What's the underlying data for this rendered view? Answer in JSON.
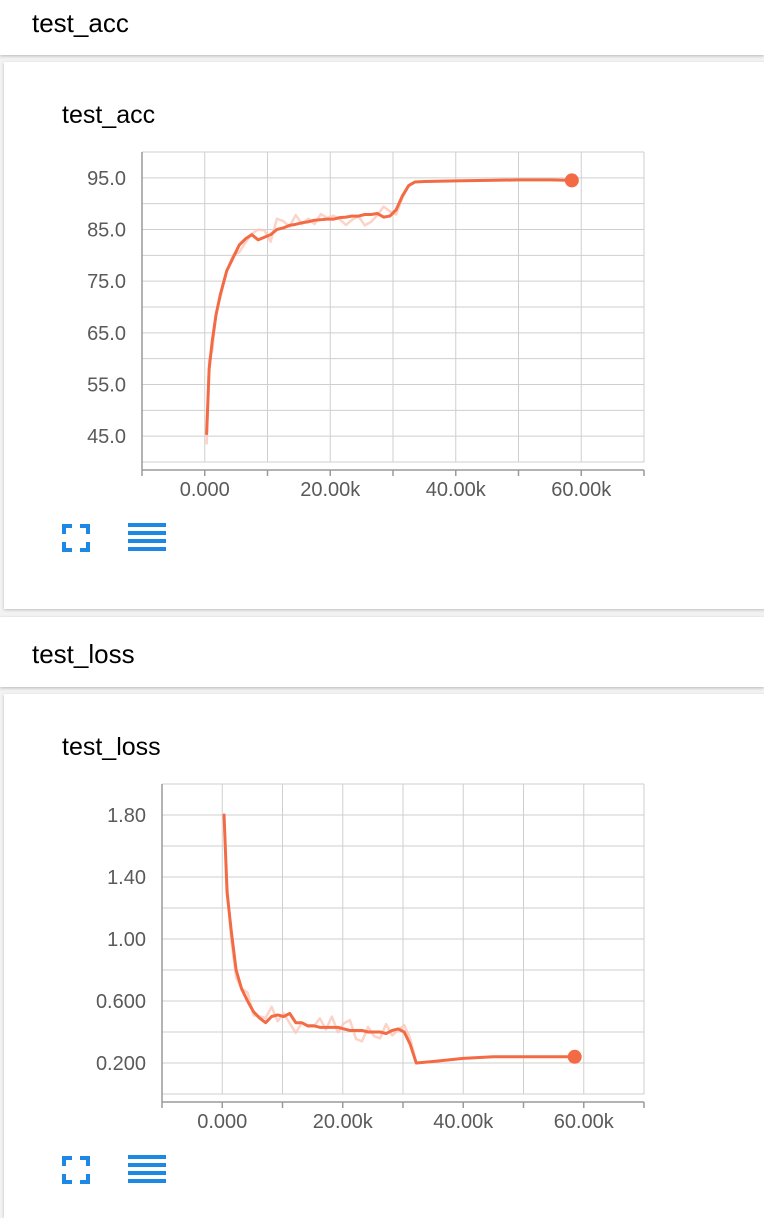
{
  "colors": {
    "line": "#f36b45",
    "raw_line": "#fbc8b8",
    "grid": "#cfcfcf",
    "axis": "#9a9a9a",
    "icon": "#1e88e5"
  },
  "icons": {
    "expand": "fullscreen-corners-icon",
    "data": "list-lines-icon"
  },
  "sections": [
    {
      "header": "test_acc",
      "title": "test_acc"
    },
    {
      "header": "test_loss",
      "title": "test_loss"
    }
  ],
  "chart_data": [
    {
      "type": "line",
      "title": "test_acc",
      "xlabel": "",
      "ylabel": "",
      "xlim": [
        -10000,
        70000
      ],
      "ylim": [
        40.0,
        100.0
      ],
      "xticks": [
        0,
        20000,
        40000,
        60000
      ],
      "xtick_labels": [
        "0.000",
        "20.00k",
        "40.00k",
        "60.00k"
      ],
      "yticks": [
        45.0,
        55.0,
        65.0,
        75.0,
        85.0,
        95.0
      ],
      "ytick_labels": [
        "45.0",
        "55.0",
        "65.0",
        "75.0",
        "85.0",
        "95.0"
      ],
      "grid": true,
      "series": [
        {
          "x": [
            300,
            700,
            1200,
            1800,
            2500,
            3500,
            4500,
            5500,
            6500,
            7500,
            8500,
            9500,
            10500,
            11500,
            12500,
            13500,
            14500,
            15500,
            16500,
            17500,
            18500,
            19500,
            20500,
            21500,
            22500,
            23500,
            24500,
            25500,
            26500,
            27500,
            28500,
            29500,
            30500,
            31500,
            32500,
            33500,
            35000,
            40000,
            45000,
            50000,
            55000,
            58500
          ],
          "y": [
            45.5,
            58.0,
            63.5,
            68.5,
            72.5,
            77.0,
            79.5,
            82.0,
            83.2,
            84.0,
            83.0,
            83.5,
            84.0,
            85.0,
            85.3,
            85.8,
            86.0,
            86.3,
            86.5,
            86.8,
            86.9,
            87.0,
            87.0,
            87.3,
            87.4,
            87.6,
            87.6,
            87.9,
            87.9,
            88.1,
            87.4,
            87.6,
            88.8,
            91.5,
            93.5,
            94.2,
            94.3,
            94.4,
            94.5,
            94.6,
            94.6,
            94.5
          ]
        }
      ],
      "last_point": [
        58500,
        94.5
      ]
    },
    {
      "type": "line",
      "title": "test_loss",
      "xlabel": "",
      "ylabel": "",
      "xlim": [
        -10000,
        70000
      ],
      "ylim": [
        0.0,
        2.0
      ],
      "xticks": [
        0,
        20000,
        40000,
        60000
      ],
      "xtick_labels": [
        "0.000",
        "20.00k",
        "40.00k",
        "60.00k"
      ],
      "yticks": [
        0.2,
        0.6,
        1.0,
        1.4,
        1.8
      ],
      "ytick_labels": [
        "0.200",
        "0.600",
        "1.00",
        "1.40",
        "1.80"
      ],
      "grid": true,
      "series": [
        {
          "x": [
            300,
            800,
            1500,
            2300,
            3200,
            4200,
            5200,
            6200,
            7200,
            8200,
            9200,
            10200,
            11200,
            12200,
            13200,
            14200,
            15200,
            16200,
            17200,
            18200,
            19200,
            20200,
            21200,
            22200,
            23200,
            24200,
            25200,
            26200,
            27200,
            28200,
            29200,
            30200,
            31200,
            32200,
            35000,
            40000,
            45000,
            50000,
            55000,
            58500
          ],
          "y": [
            1.8,
            1.3,
            1.05,
            0.8,
            0.68,
            0.6,
            0.53,
            0.49,
            0.46,
            0.5,
            0.51,
            0.5,
            0.52,
            0.46,
            0.46,
            0.44,
            0.44,
            0.43,
            0.43,
            0.43,
            0.43,
            0.42,
            0.41,
            0.41,
            0.41,
            0.4,
            0.4,
            0.4,
            0.39,
            0.41,
            0.42,
            0.4,
            0.32,
            0.2,
            0.21,
            0.23,
            0.24,
            0.24,
            0.24,
            0.24
          ]
        }
      ],
      "last_point": [
        58500,
        0.24
      ]
    }
  ]
}
